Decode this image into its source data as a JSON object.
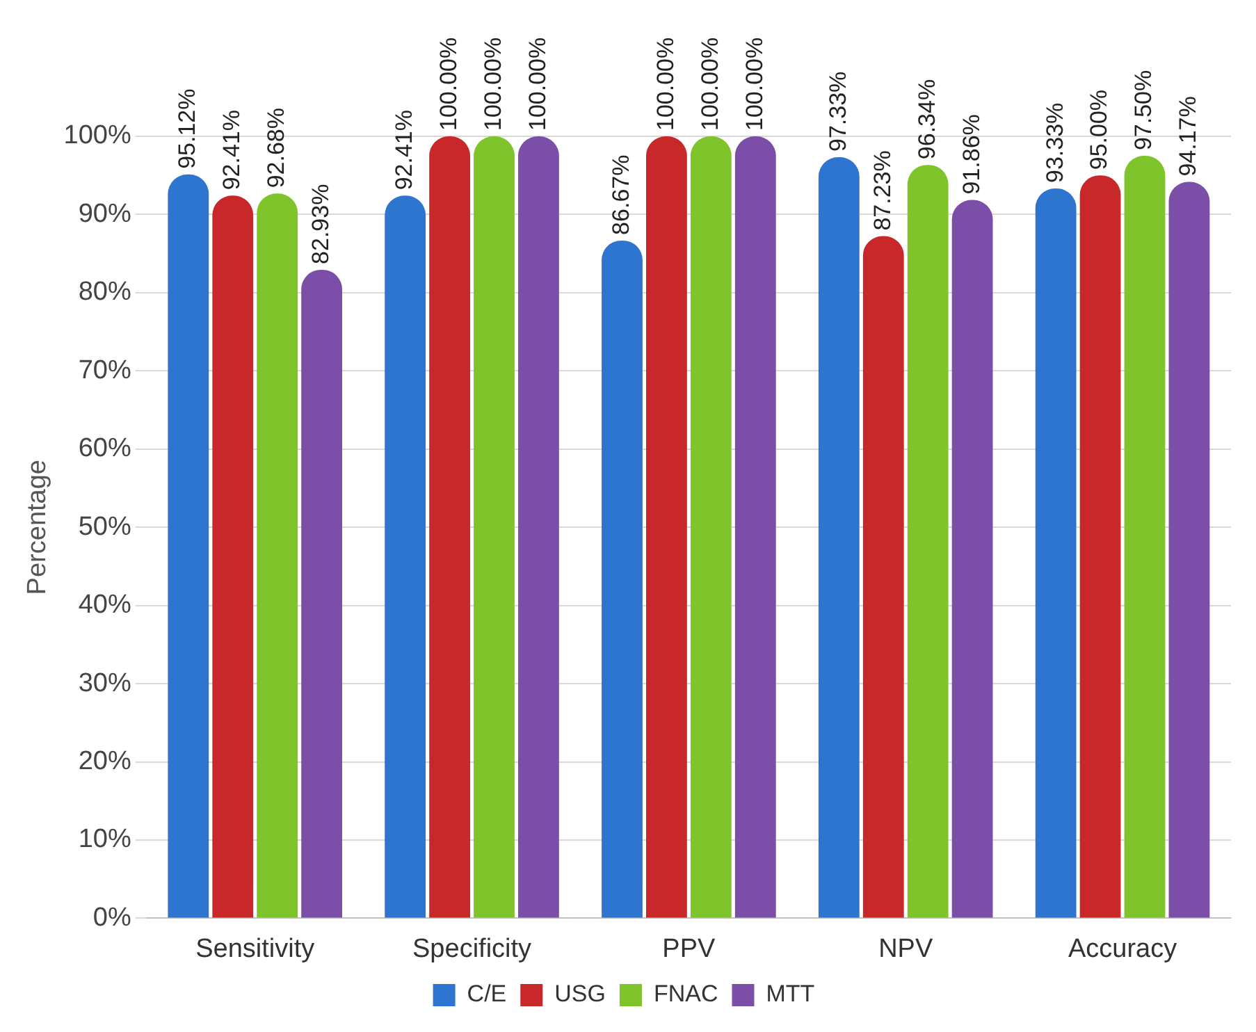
{
  "chart_data": {
    "type": "bar",
    "ylabel": "Percentage",
    "categories": [
      "Sensitivity",
      "Specificity",
      "PPV",
      "NPV",
      "Accuracy"
    ],
    "series": [
      {
        "name": "C/E",
        "color": "#2e75d0",
        "values": [
          95.12,
          92.41,
          86.67,
          97.33,
          93.33
        ],
        "value_labels": [
          "95.12%",
          "92.41%",
          "86.67%",
          "97.33%",
          "93.33%"
        ]
      },
      {
        "name": "USG",
        "color": "#c8282a",
        "values": [
          92.41,
          100,
          100,
          87.23,
          95.0
        ],
        "value_labels": [
          "92.41%",
          "100.00%",
          "100.00%",
          "87.23%",
          "95.00%"
        ]
      },
      {
        "name": "FNAC",
        "color": "#7ec42a",
        "values": [
          92.68,
          100,
          100,
          96.34,
          97.5
        ],
        "value_labels": [
          "92.68%",
          "100.00%",
          "100.00%",
          "96.34%",
          "97.50%"
        ]
      },
      {
        "name": "MTT",
        "color": "#7b4ea8",
        "values": [
          82.93,
          100,
          100,
          91.86,
          94.17
        ],
        "value_labels": [
          "82.93%",
          "100.00%",
          "100.00%",
          "91.86%",
          "94.17%"
        ]
      }
    ],
    "ylim": [
      0,
      100
    ],
    "yticks": [
      {
        "value": 0,
        "label": "0%"
      },
      {
        "value": 10,
        "label": "10%"
      },
      {
        "value": 20,
        "label": "20%"
      },
      {
        "value": 30,
        "label": "30%"
      },
      {
        "value": 40,
        "label": "40%"
      },
      {
        "value": 50,
        "label": "50%"
      },
      {
        "value": 60,
        "label": "60%"
      },
      {
        "value": 70,
        "label": "70%"
      },
      {
        "value": 80,
        "label": "80%"
      },
      {
        "value": 90,
        "label": "90%"
      },
      {
        "value": 100,
        "label": "100%"
      }
    ],
    "grid": "y",
    "legend": "bottom"
  }
}
